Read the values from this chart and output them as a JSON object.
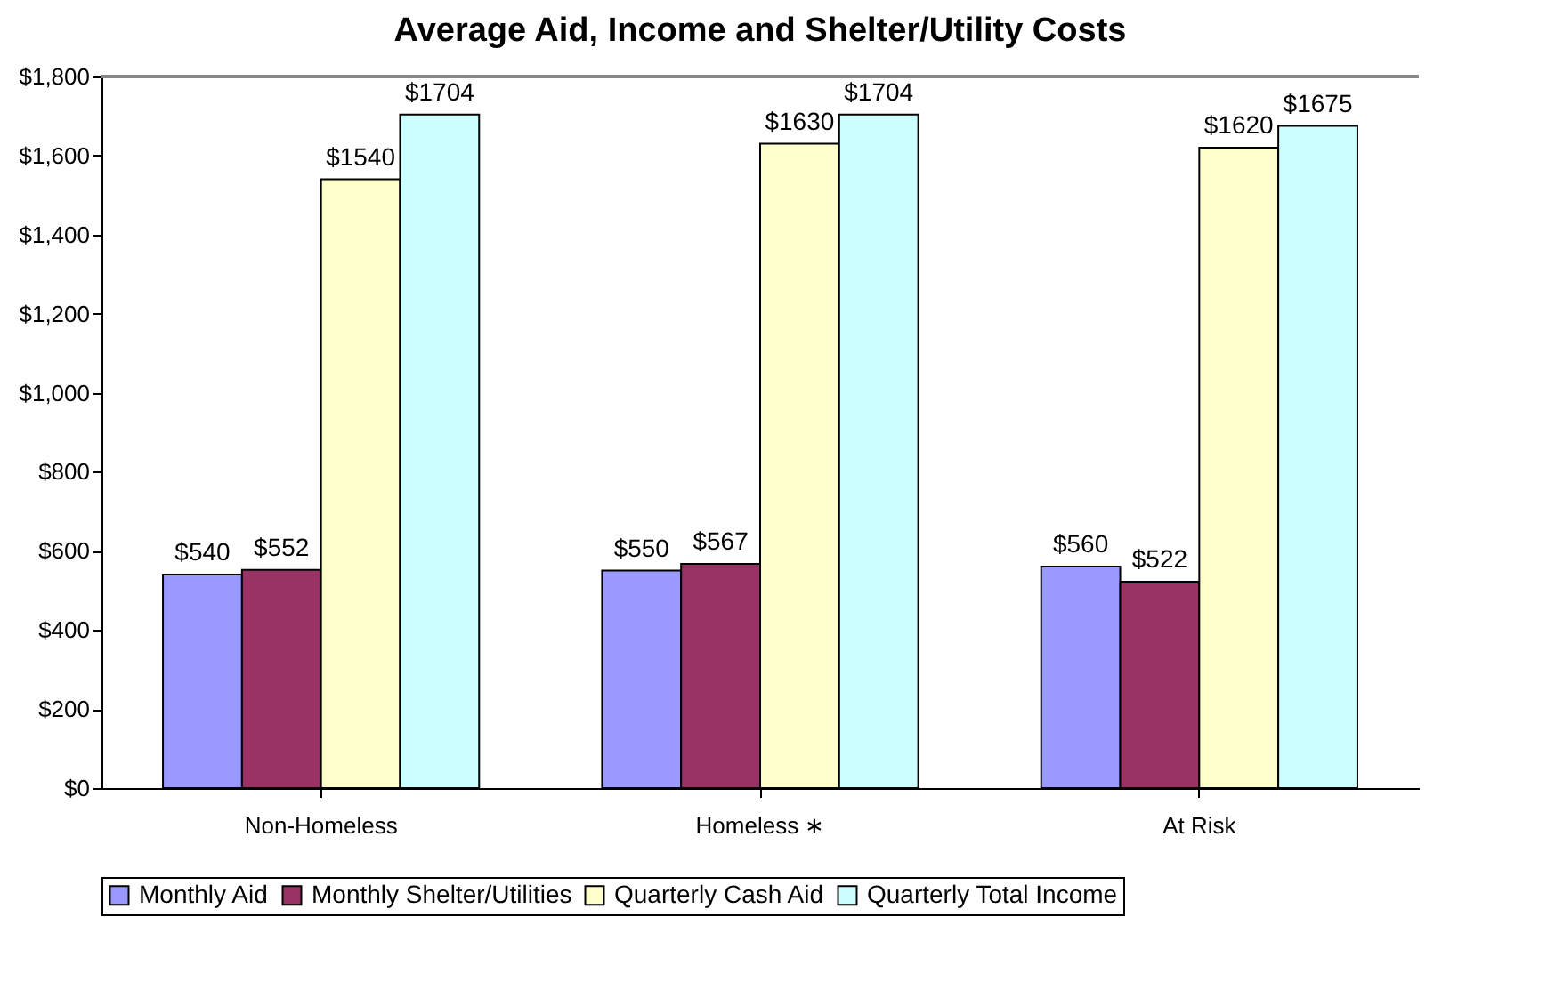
{
  "chart_data": {
    "type": "bar",
    "title": "Average Aid, Income and Shelter/Utility Costs",
    "categories": [
      "Non-Homeless",
      "Homeless ∗",
      "At Risk"
    ],
    "series": [
      {
        "name": "Monthly Aid",
        "color": "#9999ff",
        "values": [
          540,
          550,
          560
        ],
        "value_labels": [
          "$540",
          "$550",
          "$560"
        ]
      },
      {
        "name": "Monthly Shelter/Utilities",
        "color": "#993366",
        "values": [
          552,
          567,
          522
        ],
        "value_labels": [
          "$552",
          "$567",
          "$522"
        ]
      },
      {
        "name": "Quarterly Cash Aid",
        "color": "#ffffcc",
        "values": [
          1540,
          1630,
          1620
        ],
        "value_labels": [
          "$1540",
          "$1630",
          "$1620"
        ]
      },
      {
        "name": "Quarterly Total Income",
        "color": "#ccffff",
        "values": [
          1704,
          1704,
          1675
        ],
        "value_labels": [
          "$1704",
          "$1704",
          "$1675"
        ]
      }
    ],
    "ylim": [
      0,
      1800
    ],
    "yticks": [
      {
        "value": 0,
        "label": "$0"
      },
      {
        "value": 200,
        "label": "$200"
      },
      {
        "value": 400,
        "label": "$400"
      },
      {
        "value": 600,
        "label": "$600"
      },
      {
        "value": 800,
        "label": "$800"
      },
      {
        "value": 1000,
        "label": "$1,000"
      },
      {
        "value": 1200,
        "label": "$1,200"
      },
      {
        "value": 1400,
        "label": "$1,400"
      },
      {
        "value": 1600,
        "label": "$1,600"
      },
      {
        "value": 1800,
        "label": "$1,800"
      }
    ],
    "grid": false,
    "legend": "bottom"
  }
}
